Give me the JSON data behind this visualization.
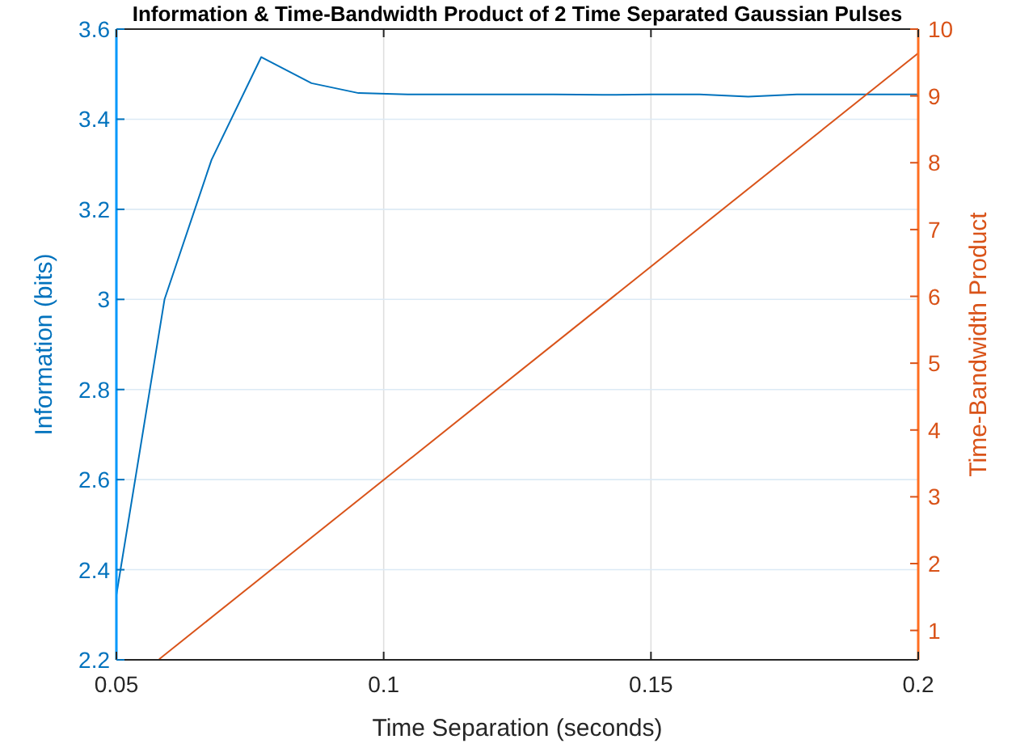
{
  "chart_data": {
    "type": "line",
    "title": "Information & Time-Bandwidth Product of 2 Time Separated Gaussian Pulses",
    "xlabel": "Time Separation (seconds)",
    "ylabel": "Information (bits)",
    "y2label": "Time-Bandwidth Product",
    "xlim": [
      0.05,
      0.2
    ],
    "xticks": [
      0.05,
      0.1,
      0.15,
      0.2
    ],
    "ylim": [
      2.2,
      3.6
    ],
    "yticks": [
      2.2,
      2.4,
      2.6,
      2.8,
      3,
      3.2,
      3.4,
      3.6
    ],
    "y2lim": [
      0.56,
      10
    ],
    "y2ticks": [
      1,
      2,
      3,
      4,
      5,
      6,
      7,
      8,
      9,
      10
    ],
    "grid": true,
    "series": [
      {
        "color": "#0072bd",
        "x": [
          0.05,
          0.059,
          0.0678,
          0.0771,
          0.0865,
          0.0953,
          0.1045,
          0.1136,
          0.1227,
          0.1318,
          0.1409,
          0.15,
          0.1591,
          0.1682,
          0.1773,
          0.1864,
          0.2
        ],
        "values": [
          2.344,
          3.0,
          3.31,
          3.538,
          3.48,
          3.458,
          3.455,
          3.455,
          3.455,
          3.455,
          3.454,
          3.455,
          3.455,
          3.45,
          3.455,
          3.455,
          3.455
        ]
      },
      {
        "color": "#d95319",
        "axis": "y2",
        "x": [
          0.058,
          0.2
        ],
        "values": [
          0.57,
          9.64
        ]
      }
    ]
  }
}
